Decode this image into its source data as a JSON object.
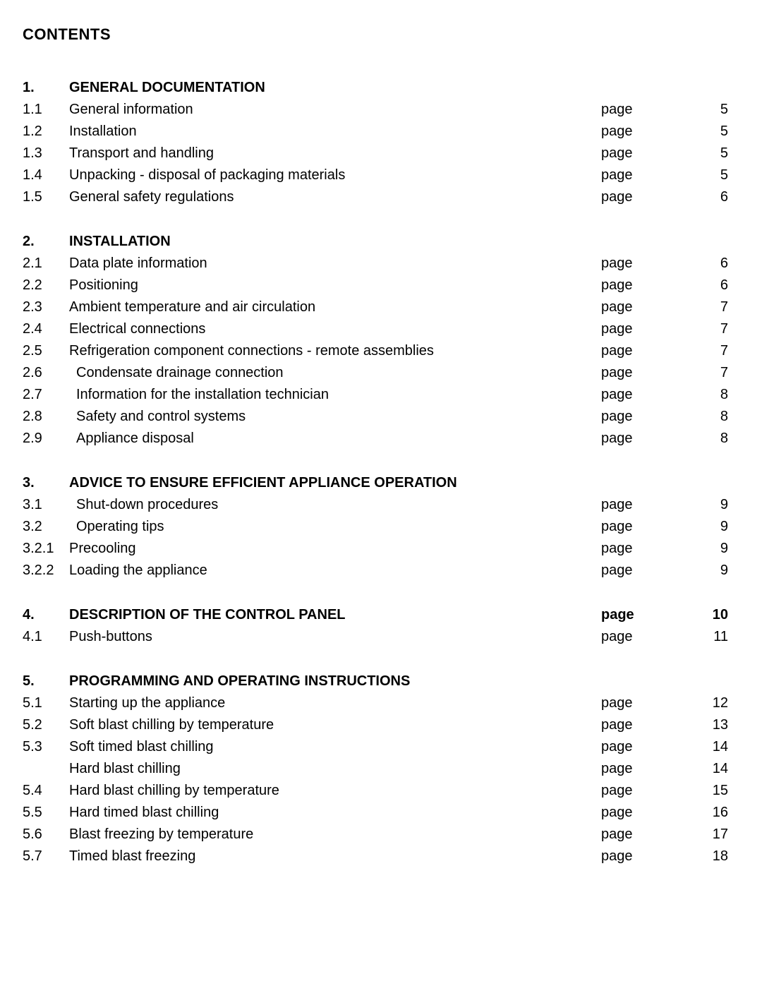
{
  "heading": "CONTENTS",
  "page_word": "page",
  "sections": [
    {
      "header": {
        "num": "1.",
        "title": "GENERAL DOCUMENTATION",
        "bold": true,
        "has_page": false
      },
      "items": [
        {
          "num": "1.1",
          "title": "General information",
          "page": "5"
        },
        {
          "num": "1.2",
          "title": "Installation",
          "page": "5"
        },
        {
          "num": "1.3",
          "title": "Transport and handling",
          "page": "5"
        },
        {
          "num": "1.4",
          "title": "Unpacking - disposal of packaging materials",
          "page": "5"
        },
        {
          "num": "1.5",
          "title": "General safety regulations",
          "page": "6"
        }
      ]
    },
    {
      "header": {
        "num": "2.",
        "title": "INSTALLATION",
        "bold": true,
        "has_page": false
      },
      "items": [
        {
          "num": "2.1",
          "title": "Data plate information",
          "page": "6"
        },
        {
          "num": "2.2",
          "title": "Positioning",
          "page": "6"
        },
        {
          "num": "2.3",
          "title": "Ambient temperature and air circulation",
          "page": "7"
        },
        {
          "num": "2.4",
          "title": "Electrical connections",
          "page": "7"
        },
        {
          "num": "2.5",
          "title": "Refrigeration component connections - remote assemblies",
          "page": "7"
        },
        {
          "num": "2.6",
          "title": "Condensate drainage connection",
          "page": "7",
          "indent": true
        },
        {
          "num": "2.7",
          "title": "Information for the installation technician",
          "page": "8",
          "indent": true
        },
        {
          "num": "2.8",
          "title": "Safety and control systems",
          "page": "8",
          "indent": true
        },
        {
          "num": "2.9",
          "title": "Appliance disposal",
          "page": "8",
          "indent": true
        }
      ]
    },
    {
      "header": {
        "num": "3.",
        "title": "ADVICE TO ENSURE EFFICIENT APPLIANCE OPERATION",
        "bold": true,
        "has_page": false
      },
      "items": [
        {
          "num": "3.1",
          "title": "Shut-down procedures",
          "page": "9",
          "indent": true
        },
        {
          "num": "3.2",
          "title": "Operating tips",
          "page": "9",
          "indent": true
        },
        {
          "num": "3.2.1",
          "title": "Precooling",
          "page": "9"
        },
        {
          "num": "3.2.2",
          "title": "Loading the appliance",
          "page": "9"
        }
      ]
    },
    {
      "header": {
        "num": "4.",
        "title": "DESCRIPTION OF THE CONTROL PANEL",
        "bold": true,
        "has_page": true,
        "page": "10"
      },
      "items": [
        {
          "num": "4.1",
          "title": "Push-buttons",
          "page": "11"
        }
      ]
    },
    {
      "header": {
        "num": "5.",
        "title": "PROGRAMMING AND OPERATING INSTRUCTIONS",
        "bold": true,
        "has_page": false
      },
      "items": [
        {
          "num": "5.1",
          "title": "Starting up the appliance",
          "page": "12"
        },
        {
          "num": "5.2",
          "title": "Soft blast chilling by temperature",
          "page": "13"
        },
        {
          "num": "5.3",
          "title": "Soft timed blast chilling",
          "page": "14"
        },
        {
          "num": "",
          "title": "Hard blast chilling",
          "page": "14"
        },
        {
          "num": "5.4",
          "title": "Hard blast chilling by temperature",
          "page": "15"
        },
        {
          "num": "5.5",
          "title": "Hard timed blast chilling",
          "page": "16"
        },
        {
          "num": "5.6",
          "title": "Blast freezing by temperature",
          "page": "17"
        },
        {
          "num": "5.7",
          "title": "Timed blast freezing",
          "page": "18"
        }
      ]
    }
  ]
}
